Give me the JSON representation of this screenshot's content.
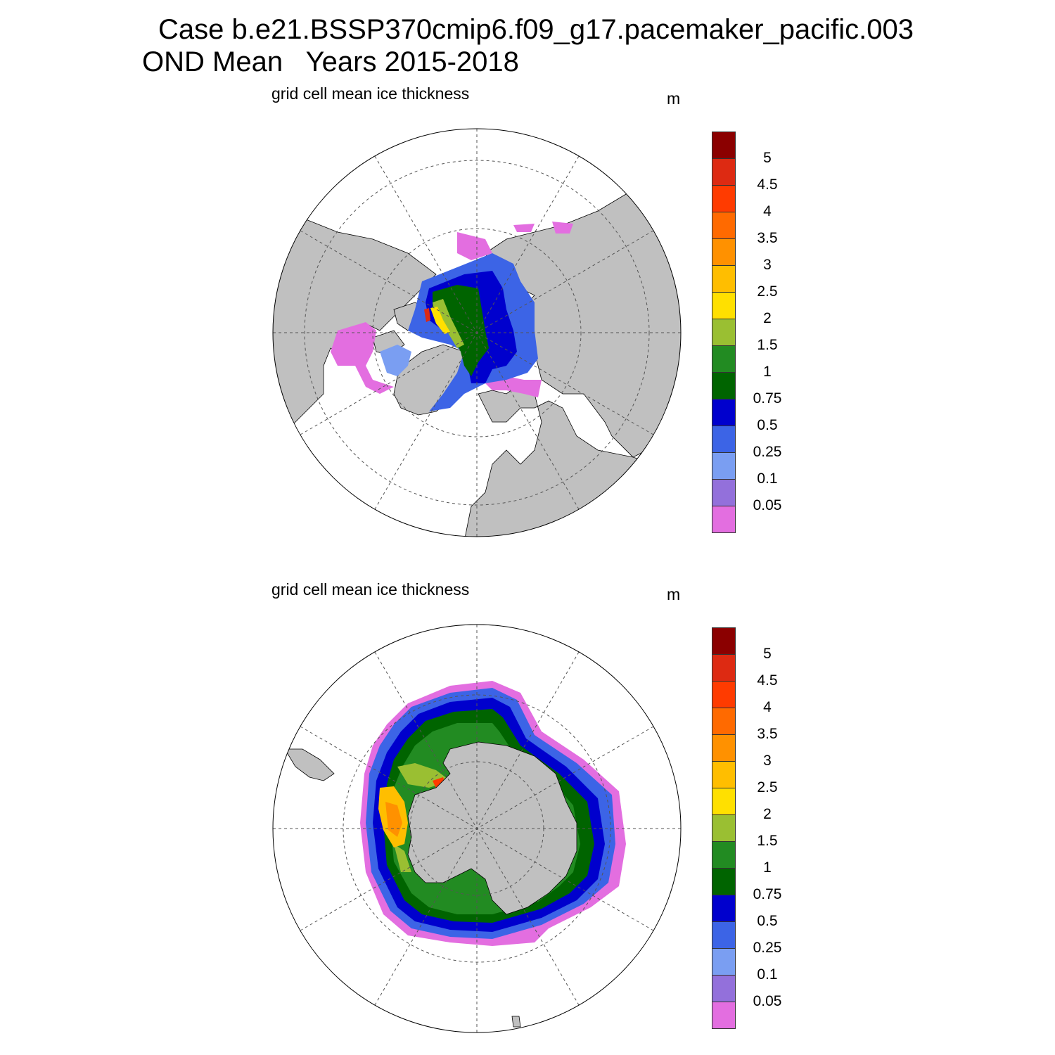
{
  "title": {
    "line1": "Case b.e21.BSSP370cmip6.f09_g17.pacemaker_pacific.003",
    "line2": "OND Mean   Years 2015-2018"
  },
  "panels": [
    {
      "id": "north",
      "title": "grid cell mean ice thickness",
      "unit": "m"
    },
    {
      "id": "south",
      "title": "grid cell mean ice thickness",
      "unit": "m"
    }
  ],
  "colorbar": {
    "labels": [
      "5",
      "4.5",
      "4",
      "3.5",
      "3",
      "2.5",
      "2",
      "1.5",
      "1",
      "0.75",
      "0.5",
      "0.25",
      "0.1",
      "0.05"
    ],
    "colors_top_to_bottom": [
      "#8b0000",
      "#dd2a12",
      "#ff3b00",
      "#ff6a00",
      "#ff9100",
      "#ffbe00",
      "#ffe000",
      "#9abf32",
      "#228b22",
      "#006400",
      "#0000cd",
      "#3c64e6",
      "#7a9ef2",
      "#9370db",
      "#e36ee0"
    ]
  },
  "map_colors": {
    "land": "#c0c0c0",
    "ocean": "#ffffff",
    "grid": "#555555"
  }
}
